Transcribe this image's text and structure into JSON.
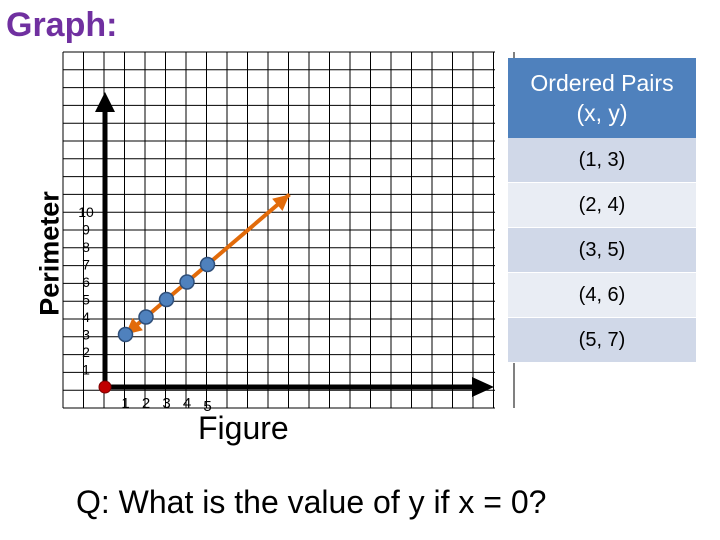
{
  "title": "Graph:",
  "question": "Q: What is the value of y if x = 0?",
  "table": {
    "header_line1": "Ordered Pairs",
    "header_line2": "(x, y)",
    "rows": [
      "(1, 3)",
      "(2, 4)",
      "(3, 5)",
      "(4, 6)",
      "(5, 7)"
    ]
  },
  "colors": {
    "title": "#7030a0",
    "table_header": "#4f81bd",
    "table_row_dark": "#d0d8e8",
    "table_row_light": "#e9edf4",
    "trend_line": "#e26b0a",
    "points": "#4f81bd",
    "origin_point": "#c00000"
  },
  "chart_data": {
    "type": "scatter",
    "xlabel": "Figure",
    "ylabel": "Perimeter",
    "x_ticks": [
      "1",
      "2",
      "3",
      "4",
      "5"
    ],
    "y_ticks": [
      "1",
      "2",
      "3",
      "4",
      "5",
      "6",
      "7",
      "8",
      "9",
      "10"
    ],
    "points": [
      {
        "x": 1,
        "y": 3
      },
      {
        "x": 2,
        "y": 4
      },
      {
        "x": 3,
        "y": 5
      },
      {
        "x": 4,
        "y": 6
      },
      {
        "x": 5,
        "y": 7
      }
    ],
    "origin_point": {
      "x": 0,
      "y": 0
    },
    "trend_line": {
      "x_start": 1,
      "y_start": 3,
      "x_end": 9,
      "y_end": 11
    },
    "grid": true
  }
}
